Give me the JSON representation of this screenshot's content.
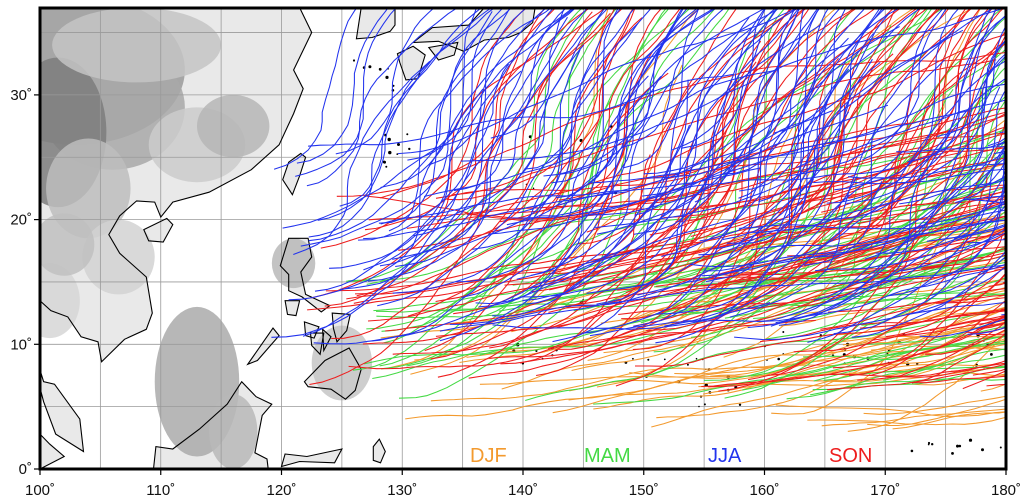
{
  "map": {
    "projection": "Mercator",
    "region": "Western North Pacific",
    "lon_range": [
      100,
      180
    ],
    "lat_range": [
      0,
      37
    ],
    "grid": true,
    "land_shading": "grayscale topography on land west of 128E",
    "track_count_per_season": {
      "DJF": 55,
      "MAM": 75,
      "JJA": 170,
      "SON": 150
    },
    "x_ticks": [
      {
        "value": 100,
        "label": "100˚"
      },
      {
        "value": 110,
        "label": "110˚"
      },
      {
        "value": 120,
        "label": "120˚"
      },
      {
        "value": 130,
        "label": "130˚"
      },
      {
        "value": 140,
        "label": "140˚"
      },
      {
        "value": 150,
        "label": "150˚"
      },
      {
        "value": 160,
        "label": "160˚"
      },
      {
        "value": 170,
        "label": "170˚"
      },
      {
        "value": 180,
        "label": "180˚"
      }
    ],
    "y_ticks": [
      {
        "value": 0,
        "label": "0˚"
      },
      {
        "value": 10,
        "label": "10˚"
      },
      {
        "value": 20,
        "label": "20˚"
      },
      {
        "value": 30,
        "label": "30˚"
      }
    ]
  },
  "legend": {
    "placement": "bottom-center",
    "items": [
      {
        "key": "DJF",
        "label": "DJF",
        "color": "#f39a2e"
      },
      {
        "key": "MAM",
        "label": "MAM",
        "color": "#44d944"
      },
      {
        "key": "JJA",
        "label": "JJA",
        "color": "#2233ee"
      },
      {
        "key": "SON",
        "label": "SON",
        "color": "#ee1d1d"
      }
    ]
  },
  "colors": {
    "land_light": "#e9e9e9",
    "land_dark": "#8a8a8a",
    "coastline": "#000000",
    "grid": "#9a9a9a",
    "ocean": "#ffffff"
  }
}
